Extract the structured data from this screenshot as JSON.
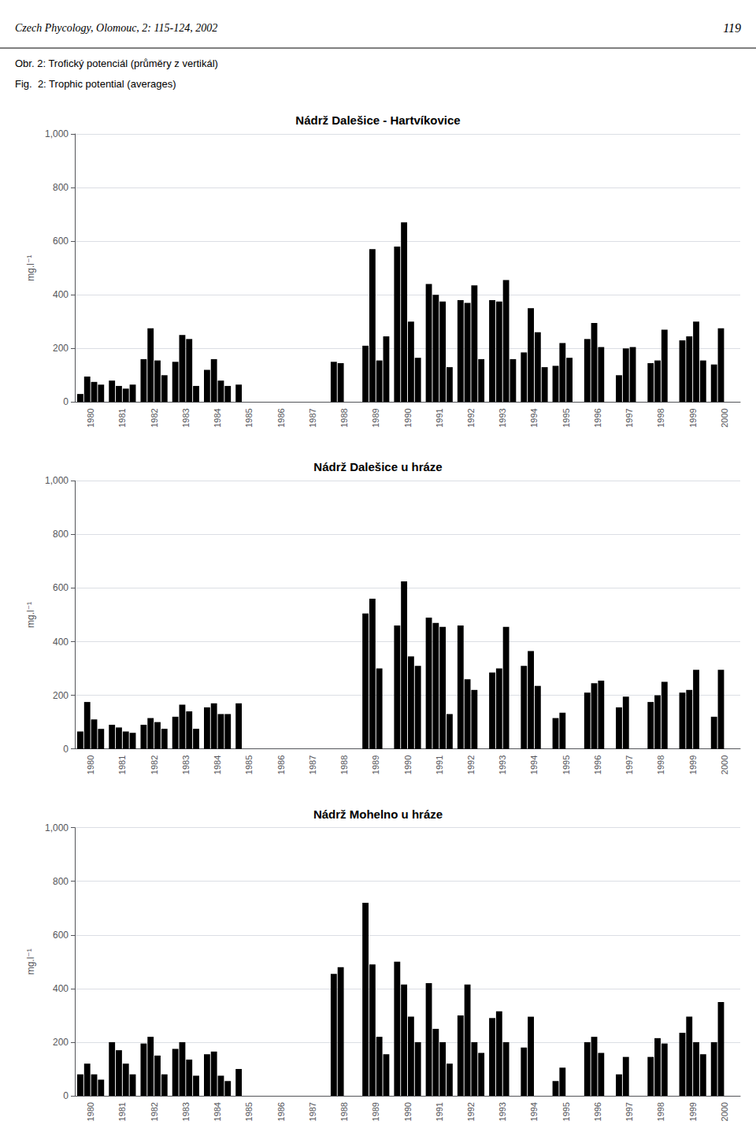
{
  "annotations": [
    "Czech Phycology, Olomouc, 2: 115-124, 2002",
    "119",
    "Obr. 2: Trofický potenciál (průměry z vertikál)",
    "Fig.  2: Trophic potential (averages)"
  ],
  "chart_data": [
    {
      "type": "bar",
      "title": "Nádrž Dalešice - Hartvíkovice",
      "ylabel": "mg.l⁻¹",
      "categories": [
        "1980",
        "1981",
        "1982",
        "1983",
        "1984",
        "1985",
        "1986",
        "1987",
        "1988",
        "1989",
        "1990",
        "1991",
        "1992",
        "1993",
        "1994",
        "1995",
        "1996",
        "1997",
        "1998",
        "1999",
        "2000"
      ],
      "series": [
        {
          "values": [
            30,
            80,
            160,
            150,
            120,
            65,
            0,
            0,
            150,
            210,
            580,
            440,
            380,
            380,
            185,
            135,
            235,
            100,
            145,
            230,
            140
          ]
        },
        {
          "values": [
            95,
            60,
            275,
            250,
            160,
            0,
            0,
            0,
            145,
            570,
            670,
            400,
            370,
            375,
            350,
            220,
            295,
            200,
            155,
            245,
            275
          ]
        },
        {
          "values": [
            75,
            50,
            155,
            235,
            80,
            0,
            0,
            0,
            0,
            155,
            300,
            375,
            435,
            455,
            260,
            165,
            205,
            205,
            270,
            300,
            0
          ]
        },
        {
          "values": [
            65,
            65,
            100,
            60,
            60,
            0,
            0,
            0,
            0,
            245,
            165,
            130,
            160,
            160,
            130,
            0,
            0,
            0,
            0,
            155,
            0
          ]
        }
      ],
      "color": "#000000",
      "ylim": [
        0,
        1000
      ],
      "yticks": [
        0,
        200,
        400,
        600,
        800,
        1000
      ],
      "grid": true
    },
    {
      "type": "bar",
      "title": "Nádrž Dalešice u hráze",
      "ylabel": "mg.l⁻¹",
      "categories": [
        "1980",
        "1981",
        "1982",
        "1983",
        "1984",
        "1985",
        "1986",
        "1987",
        "1988",
        "1989",
        "1990",
        "1991",
        "1992",
        "1993",
        "1994",
        "1995",
        "1996",
        "1997",
        "1998",
        "1999",
        "2000"
      ],
      "series": [
        {
          "values": [
            65,
            90,
            90,
            120,
            155,
            170,
            0,
            0,
            0,
            505,
            460,
            490,
            460,
            285,
            310,
            115,
            210,
            155,
            175,
            210,
            120
          ]
        },
        {
          "values": [
            175,
            80,
            115,
            165,
            170,
            0,
            0,
            0,
            0,
            560,
            625,
            470,
            260,
            300,
            365,
            135,
            245,
            195,
            200,
            220,
            295
          ]
        },
        {
          "values": [
            110,
            65,
            100,
            140,
            130,
            0,
            0,
            0,
            0,
            300,
            345,
            455,
            220,
            455,
            235,
            0,
            255,
            0,
            250,
            295,
            0
          ]
        },
        {
          "values": [
            75,
            60,
            75,
            75,
            130,
            0,
            0,
            0,
            0,
            0,
            310,
            130,
            0,
            0,
            0,
            0,
            0,
            0,
            0,
            0,
            0
          ]
        }
      ],
      "color": "#000000",
      "ylim": [
        0,
        1000
      ],
      "yticks": [
        0,
        200,
        400,
        600,
        800,
        1000
      ],
      "grid": true
    },
    {
      "type": "bar",
      "title": "Nádrž Mohelno u hráze",
      "ylabel": "mg.l⁻¹",
      "categories": [
        "1980",
        "1981",
        "1982",
        "1983",
        "1984",
        "1985",
        "1986",
        "1987",
        "1988",
        "1989",
        "1990",
        "1991",
        "1992",
        "1993",
        "1994",
        "1995",
        "1996",
        "1997",
        "1998",
        "1999",
        "2000"
      ],
      "series": [
        {
          "values": [
            80,
            200,
            195,
            175,
            155,
            100,
            0,
            0,
            455,
            720,
            500,
            420,
            300,
            290,
            180,
            55,
            200,
            80,
            145,
            235,
            200
          ]
        },
        {
          "values": [
            120,
            170,
            220,
            200,
            165,
            0,
            0,
            0,
            480,
            490,
            415,
            250,
            415,
            315,
            295,
            105,
            220,
            145,
            215,
            295,
            350
          ]
        },
        {
          "values": [
            80,
            120,
            150,
            135,
            75,
            0,
            0,
            0,
            0,
            220,
            295,
            200,
            200,
            200,
            0,
            0,
            160,
            0,
            195,
            200,
            0
          ]
        },
        {
          "values": [
            60,
            80,
            80,
            75,
            55,
            0,
            0,
            0,
            0,
            155,
            200,
            120,
            160,
            0,
            0,
            0,
            0,
            0,
            0,
            155,
            0
          ]
        }
      ],
      "color": "#000000",
      "ylim": [
        0,
        1000
      ],
      "yticks": [
        0,
        200,
        400,
        600,
        800,
        1000
      ],
      "grid": true
    }
  ]
}
